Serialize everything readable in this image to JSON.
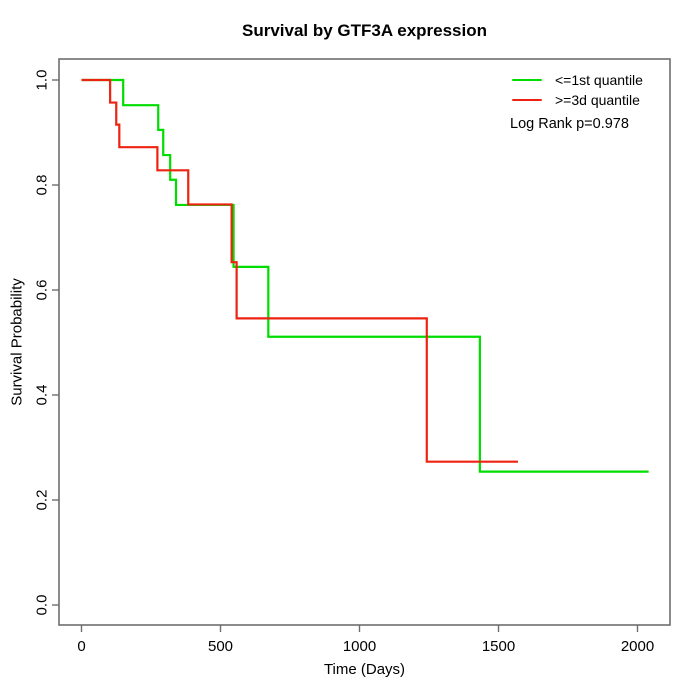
{
  "chart_data": {
    "type": "line",
    "subtype": "kaplan_meier_step",
    "title": "Survival by GTF3A expression",
    "xlabel": "Time (Days)",
    "ylabel": "Survival Probability",
    "xticks": [
      0,
      500,
      1000,
      1500,
      2000
    ],
    "yticks": [
      0.0,
      0.2,
      0.4,
      0.6,
      0.8,
      1.0
    ],
    "xlim": [
      0,
      2115
    ],
    "ylim": [
      0.0,
      1.0
    ],
    "grid": false,
    "legend_position": "top-right",
    "annotation": "Log Rank p=0.978",
    "series": [
      {
        "name": "<=1st quantile",
        "color": "#00DD00",
        "steps": [
          [
            0,
            1.0
          ],
          [
            150,
            0.952
          ],
          [
            276,
            0.905
          ],
          [
            294,
            0.857
          ],
          [
            319,
            0.81
          ],
          [
            340,
            0.762
          ],
          [
            547,
            0.644
          ],
          [
            672,
            0.511
          ],
          [
            1433,
            0.254
          ]
        ],
        "end_time": 2040
      },
      {
        "name": ">=3d quantile",
        "color": "#EE2211",
        "steps": [
          [
            0,
            1.0
          ],
          [
            103,
            0.957
          ],
          [
            125,
            0.915
          ],
          [
            136,
            0.872
          ],
          [
            273,
            0.828
          ],
          [
            384,
            0.763
          ],
          [
            540,
            0.653
          ],
          [
            558,
            0.546
          ],
          [
            1242,
            0.273
          ]
        ],
        "end_time": 1570
      }
    ]
  }
}
